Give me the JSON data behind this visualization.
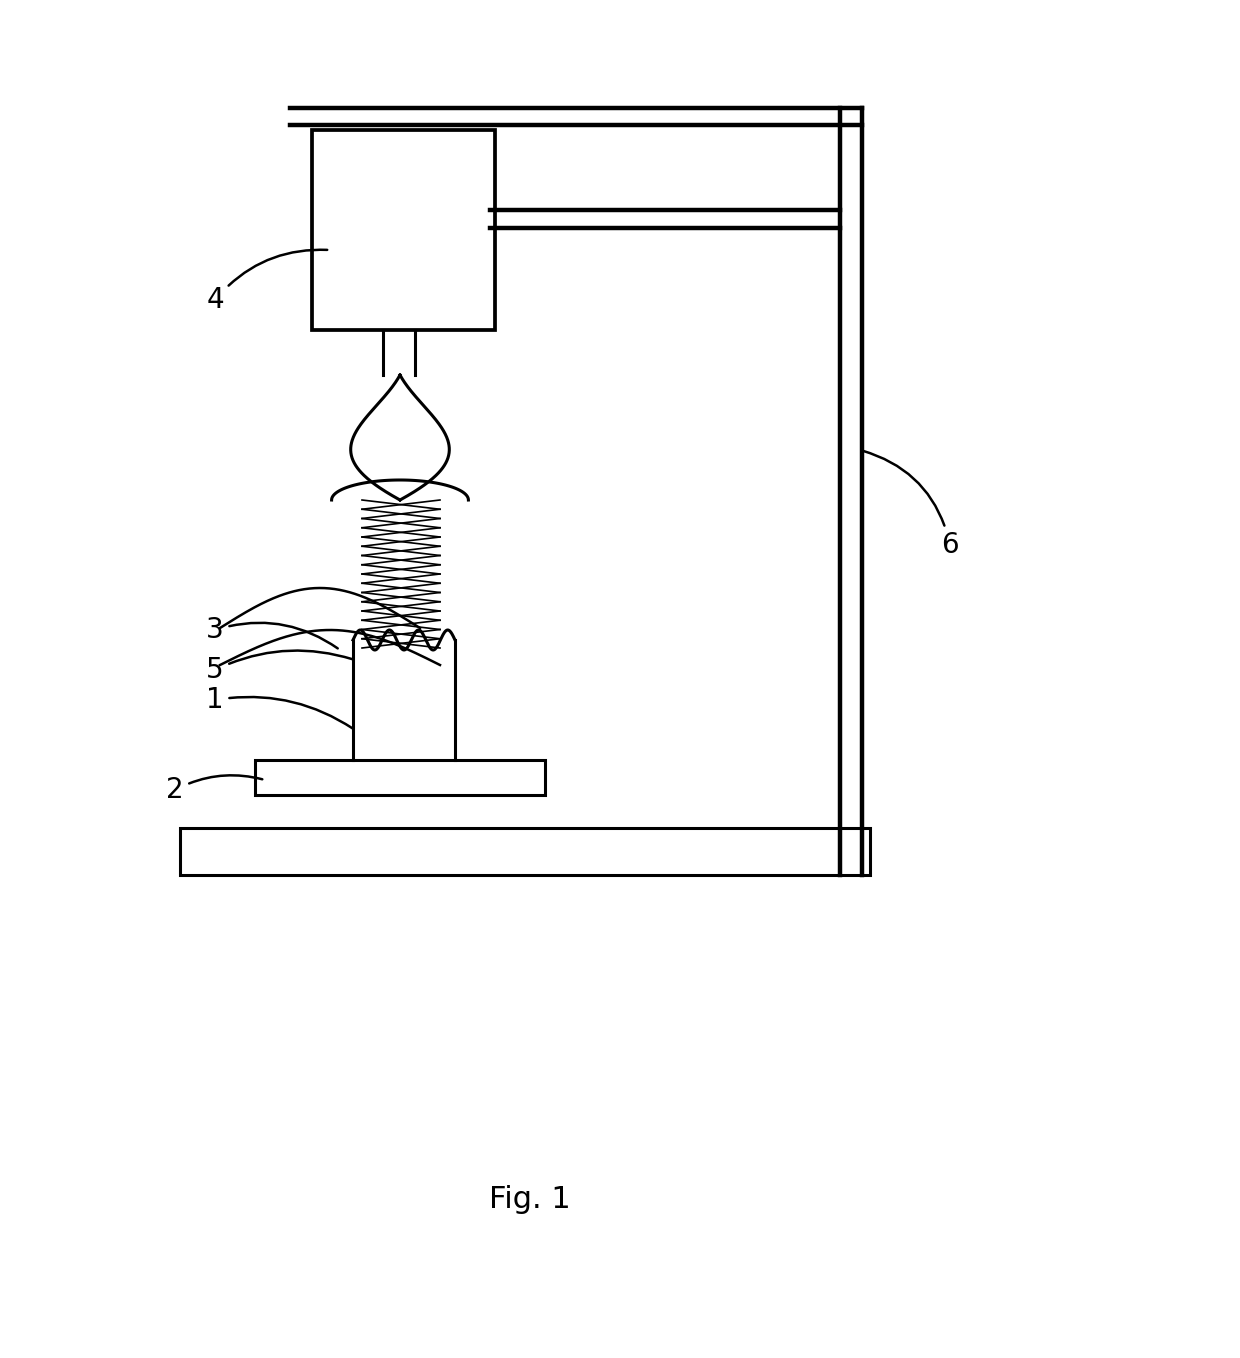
{
  "fig_width": 12.4,
  "fig_height": 13.58,
  "bg_color": "#ffffff",
  "line_color": "#000000",
  "line_width": 2.2,
  "title": "Fig. 1",
  "title_fontsize": 22,
  "label_fontsize": 20
}
